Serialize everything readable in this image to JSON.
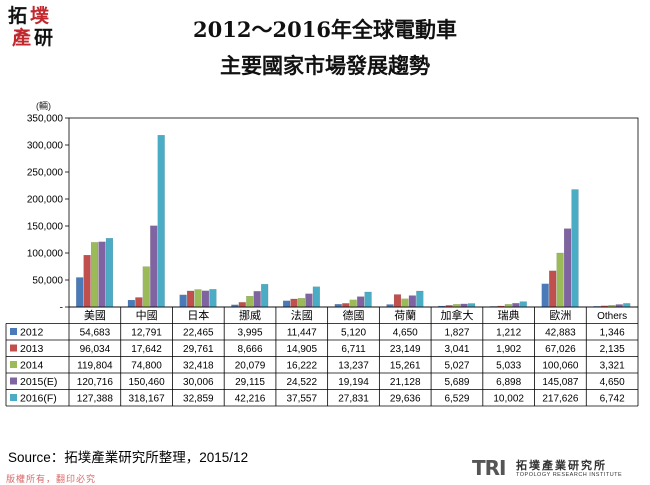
{
  "logo": {
    "line1": "拓",
    "line2": "墣",
    "line3": "產",
    "line4": "研",
    "colors": [
      "#c0282d",
      "#111111"
    ]
  },
  "title_line1": "2012～2016年全球電動車",
  "title_line2": "主要國家市場發展趨勢",
  "source": "Source：拓墣產業研究所整理，2015/12",
  "copyright": "版權所有，翻印必究",
  "tri_logo": {
    "mark": "TRI",
    "name_cn": "拓墣產業研究所",
    "name_en": "TOPOLOGY RESEARCH INSTITUTE"
  },
  "chart_data": {
    "type": "bar",
    "title": "2012～2016年全球電動車主要國家市場發展趨勢",
    "ylabel": "(輛)",
    "ylim": [
      0,
      350000
    ],
    "yticks": [
      0,
      50000,
      100000,
      150000,
      200000,
      250000,
      300000,
      350000
    ],
    "ytick_labels": [
      "-",
      "50,000",
      "100,000",
      "150,000",
      "200,000",
      "250,000",
      "300,000",
      "350,000"
    ],
    "categories": [
      "美國",
      "中國",
      "日本",
      "挪威",
      "法國",
      "德國",
      "荷蘭",
      "加拿大",
      "瑞典",
      "歐洲",
      "Others"
    ],
    "series": [
      {
        "name": "2012",
        "color": "#4a7ab8",
        "values": [
          54683,
          12791,
          22465,
          3995,
          11447,
          5120,
          4650,
          1827,
          1212,
          42883,
          1346
        ],
        "labels": [
          "54,683",
          "12,791",
          "22,465",
          "3,995",
          "11,447",
          "5,120",
          "4,650",
          "1,827",
          "1,212",
          "42,883",
          "1,346"
        ]
      },
      {
        "name": "2013",
        "color": "#c0504d",
        "values": [
          96034,
          17642,
          29761,
          8666,
          14905,
          6711,
          23149,
          3041,
          1902,
          67026,
          2135
        ],
        "labels": [
          "96,034",
          "17,642",
          "29,761",
          "8,666",
          "14,905",
          "6,711",
          "23,149",
          "3,041",
          "1,902",
          "67,026",
          "2,135"
        ]
      },
      {
        "name": "2014",
        "color": "#9bbb59",
        "values": [
          119804,
          74800,
          32418,
          20079,
          16222,
          13237,
          15261,
          5027,
          5033,
          100060,
          3321
        ],
        "labels": [
          "119,804",
          "74,800",
          "32,418",
          "20,079",
          "16,222",
          "13,237",
          "15,261",
          "5,027",
          "5,033",
          "100,060",
          "3,321"
        ]
      },
      {
        "name": "2015(E)",
        "color": "#8064a2",
        "values": [
          120716,
          150460,
          30006,
          29115,
          24522,
          19194,
          21128,
          5689,
          6898,
          145087,
          4650
        ],
        "labels": [
          "120,716",
          "150,460",
          "30,006",
          "29,115",
          "24,522",
          "19,194",
          "21,128",
          "5,689",
          "6,898",
          "145,087",
          "4,650"
        ]
      },
      {
        "name": "2016(F)",
        "color": "#4bacc6",
        "values": [
          127388,
          318167,
          32859,
          42216,
          37557,
          27831,
          29636,
          6529,
          10002,
          217626,
          6742
        ],
        "labels": [
          "127,388",
          "318,167",
          "32,859",
          "42,216",
          "37,557",
          "27,831",
          "29,636",
          "6,529",
          "10,002",
          "217,626",
          "6,742"
        ]
      }
    ],
    "grid": false,
    "legend": "table-left"
  }
}
